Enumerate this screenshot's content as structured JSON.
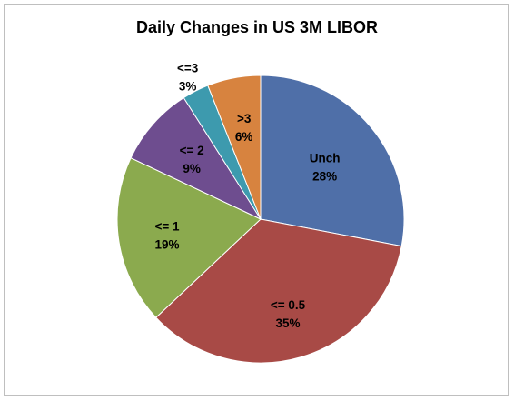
{
  "chart_data": {
    "type": "pie",
    "title": "Daily Changes in US 3M LIBOR",
    "start_angle_deg": 90,
    "direction": "clockwise",
    "slices": [
      {
        "label": "Unch",
        "value_label": "28%",
        "value": 28,
        "color": "#4F6FA8"
      },
      {
        "label": "<= 0.5",
        "value_label": "35%",
        "value": 35,
        "color": "#A84A46"
      },
      {
        "label": "<= 1",
        "value_label": "19%",
        "value": 19,
        "color": "#8BAA4E"
      },
      {
        "label": "<= 2",
        "value_label": "9%",
        "value": 9,
        "color": "#6E4D8F"
      },
      {
        "label": "<=3",
        "value_label": "3%",
        "value": 3,
        "color": "#3D9AAE"
      },
      {
        "label": ">3",
        "value_label": "6%",
        "value": 6,
        "color": "#D7833F"
      }
    ],
    "legend": "none"
  }
}
